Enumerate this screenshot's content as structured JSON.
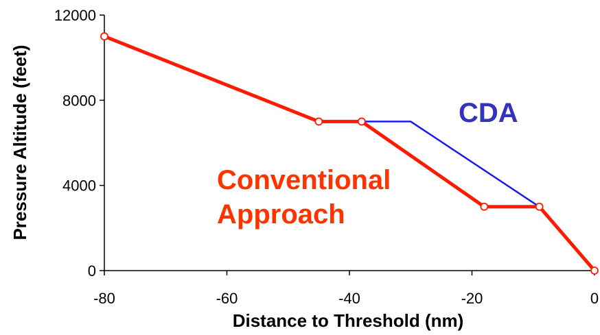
{
  "chart_data": {
    "type": "line",
    "xlabel": "Distance to Threshold (nm)",
    "ylabel": "Pressure Altitude (feet)",
    "xlim": [
      -80,
      0
    ],
    "ylim": [
      0,
      12000
    ],
    "xticks": [
      -80,
      -60,
      -40,
      -20,
      0
    ],
    "yticks": [
      0,
      4000,
      8000,
      12000
    ],
    "xtick_labels": [
      "-80",
      "-60",
      "-40",
      "-20",
      "0"
    ],
    "ytick_labels": [
      "0",
      "4000",
      "8000",
      "12000"
    ],
    "grid": false,
    "series": [
      {
        "name": "CDA",
        "color": "#1a1aee",
        "markers": false,
        "points": [
          [
            -80,
            11000
          ],
          [
            -45,
            7000
          ],
          [
            -30,
            7000
          ],
          [
            -9,
            3000
          ],
          [
            0,
            0
          ]
        ]
      },
      {
        "name": "Conventional Approach",
        "color": "#ff1a00",
        "markers": true,
        "points": [
          [
            -80,
            11000
          ],
          [
            -45,
            7000
          ],
          [
            -38,
            7000
          ],
          [
            -18,
            3000
          ],
          [
            -9,
            3000
          ],
          [
            0,
            0
          ]
        ]
      }
    ],
    "annotations": [
      {
        "text": "CDA",
        "color": "#3333bb"
      },
      {
        "text": "Conventional",
        "color": "#ff3300"
      },
      {
        "text": "Approach",
        "color": "#ff3300"
      }
    ]
  }
}
